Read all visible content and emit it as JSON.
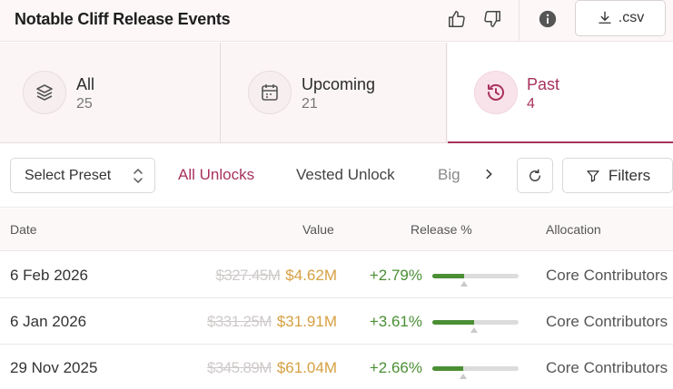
{
  "header": {
    "title": "Notable Cliff Release Events",
    "csv_label": ".csv"
  },
  "tabs": [
    {
      "label": "All",
      "count": "25"
    },
    {
      "label": "Upcoming",
      "count": "21"
    },
    {
      "label": "Past",
      "count": "4"
    }
  ],
  "toolbar": {
    "preset_label": "Select Preset",
    "filter_tabs": [
      "All Unlocks",
      "Vested Unlock",
      "Big"
    ],
    "filters_label": "Filters"
  },
  "table": {
    "columns": [
      "Date",
      "Value",
      "Release %",
      "Allocation"
    ],
    "rows": [
      {
        "date": "6 Feb 2026",
        "old_value": "$327.45M",
        "value": "$4.62M",
        "pct": "+2.79%",
        "pct_num": 2.79,
        "allocation": "Core Contributors"
      },
      {
        "date": "6 Jan 2026",
        "old_value": "$331.25M",
        "value": "$31.91M",
        "pct": "+3.61%",
        "pct_num": 3.61,
        "allocation": "Core Contributors"
      },
      {
        "date": "29 Nov 2025",
        "old_value": "$345.89M",
        "value": "$61.04M",
        "pct": "+2.66%",
        "pct_num": 2.66,
        "allocation": "Core Contributors"
      }
    ]
  },
  "colors": {
    "accent": "#a8325e",
    "positive": "#4a8f34",
    "value": "#d6a042"
  }
}
